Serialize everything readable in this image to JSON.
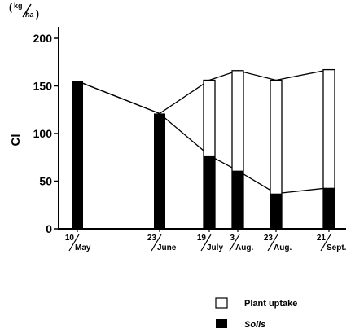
{
  "chart_data": {
    "type": "bar",
    "unit_numerator": "kg",
    "unit_denominator": "ha",
    "ylabel": "Cl",
    "ylim": [
      0,
      200
    ],
    "yticks": [
      0,
      50,
      100,
      150,
      200
    ],
    "categories": [
      {
        "day": "10",
        "month": "May"
      },
      {
        "day": "23",
        "month": "June"
      },
      {
        "day": "19",
        "month": "July"
      },
      {
        "day": "3",
        "month": "Aug."
      },
      {
        "day": "23",
        "month": "Aug."
      },
      {
        "day": "21",
        "month": "Sept."
      }
    ],
    "series": [
      {
        "name": "Soils",
        "values": [
          155,
          121,
          77,
          61,
          37,
          43
        ]
      },
      {
        "name": "Plant uptake",
        "values": [
          0,
          0,
          79,
          105,
          119,
          124
        ]
      }
    ],
    "legend": [
      {
        "label": "Plant uptake"
      },
      {
        "label": "Soils"
      }
    ],
    "colors": {
      "soils": "#000000",
      "plant_uptake": "#ffffff",
      "axis": "#000000"
    }
  }
}
